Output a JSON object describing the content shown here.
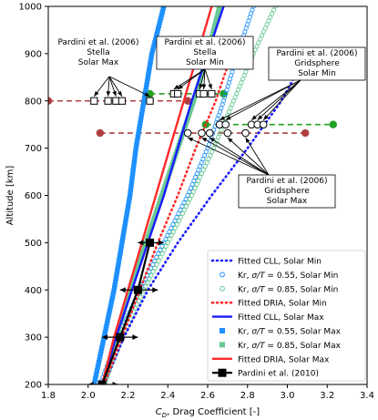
{
  "chart_data": {
    "type": "line",
    "xlabel": "C_D, Drag Coefficient [-]",
    "ylabel": "Altitude [km]",
    "xlim": [
      1.8,
      3.4
    ],
    "ylim": [
      200,
      1000
    ],
    "xticks": [
      "1.8",
      "2.0",
      "2.2",
      "2.4",
      "2.6",
      "2.8",
      "3.0",
      "3.2",
      "3.4"
    ],
    "yticks": [
      "200",
      "300",
      "400",
      "500",
      "600",
      "700",
      "800",
      "900",
      "1000"
    ],
    "grid": false,
    "legend_position": "lower-right",
    "colors": {
      "cll": "#1a1aff",
      "dria": "#ff2a2a",
      "kr055": "#1e90ff",
      "kr085": "#66c992",
      "pardini2006_green": "#22a022",
      "pardini2006_red": "#b04040",
      "pardini2010": "#000000"
    },
    "legend": [
      {
        "label": "Fitted CLL, Solar Min",
        "symbol": "dotted",
        "color": "#1a1aff"
      },
      {
        "label": "Kr, σ/T = 0.55, Solar Min",
        "symbol": "open-circle",
        "color": "#1e90ff"
      },
      {
        "label": "Kr, σ/T = 0.85, Solar Min",
        "symbol": "open-circle",
        "color": "#66c992"
      },
      {
        "label": "Fitted DRIA, Solar Min",
        "symbol": "dotted",
        "color": "#ff2a2a"
      },
      {
        "label": "Fitted CLL, Solar Max",
        "symbol": "solid",
        "color": "#1a1aff"
      },
      {
        "label": "Kr, σ/T = 0.55, Solar Max",
        "symbol": "filled-square",
        "color": "#1e90ff"
      },
      {
        "label": "Kr, σ/T = 0.85, Solar Max",
        "symbol": "filled-square",
        "color": "#66c992"
      },
      {
        "label": "Fitted DRIA, Solar Max",
        "symbol": "solid",
        "color": "#ff2a2a"
      },
      {
        "label": "Pardini et al. (2010)",
        "symbol": "line-square",
        "color": "#000000"
      }
    ],
    "series": [
      {
        "name": "Fitted CLL, Solar Min",
        "style": "dotted",
        "color": "#1a1aff",
        "x": [
          2.08,
          2.18,
          2.3,
          2.45,
          2.62,
          2.8,
          2.97,
          3.1
        ],
        "y": [
          200,
          300,
          400,
          500,
          600,
          700,
          800,
          900
        ]
      },
      {
        "name": "Kr, σ/T = 0.55, Solar Min",
        "style": "open-circle",
        "color": "#1e90ff",
        "x": [
          2.06,
          2.15,
          2.26,
          2.38,
          2.5,
          2.6,
          2.68,
          2.75,
          2.83
        ],
        "y": [
          200,
          300,
          400,
          500,
          600,
          700,
          800,
          900,
          1000
        ]
      },
      {
        "name": "Kr, σ/T = 0.85, Solar Min",
        "style": "open-circle",
        "color": "#66c992",
        "x": [
          2.08,
          2.17,
          2.28,
          2.4,
          2.52,
          2.63,
          2.73,
          2.83,
          2.94
        ],
        "y": [
          200,
          300,
          400,
          500,
          600,
          700,
          800,
          900,
          1000
        ]
      },
      {
        "name": "Fitted DRIA, Solar Min",
        "style": "dotted",
        "color": "#ff2a2a",
        "x": [
          2.08,
          2.17,
          2.26,
          2.35,
          2.45,
          2.54,
          2.64,
          2.72
        ],
        "y": [
          200,
          300,
          400,
          500,
          600,
          700,
          800,
          900
        ]
      },
      {
        "name": "Fitted CLL, Solar Max",
        "style": "solid",
        "color": "#1a1aff",
        "x": [
          2.07,
          2.14,
          2.22,
          2.3,
          2.38,
          2.45,
          2.52,
          2.6,
          2.68
        ],
        "y": [
          200,
          300,
          400,
          500,
          600,
          700,
          800,
          900,
          1000
        ]
      },
      {
        "name": "Kr, σ/T = 0.55, Solar Max",
        "style": "filled-square",
        "color": "#1e90ff",
        "x": [
          2.03,
          2.08,
          2.13,
          2.17,
          2.21,
          2.24,
          2.28,
          2.32,
          2.38
        ],
        "y": [
          200,
          300,
          400,
          500,
          600,
          700,
          800,
          900,
          1000
        ]
      },
      {
        "name": "Kr, σ/T = 0.85, Solar Max",
        "style": "filled-square",
        "color": "#66c992",
        "x": [
          2.08,
          2.14,
          2.21,
          2.29,
          2.37,
          2.45,
          2.53,
          2.6,
          2.66
        ],
        "y": [
          200,
          300,
          400,
          500,
          600,
          700,
          800,
          900,
          1000
        ]
      },
      {
        "name": "Fitted DRIA, Solar Max",
        "style": "solid",
        "color": "#ff2a2a",
        "x": [
          2.07,
          2.13,
          2.2,
          2.27,
          2.34,
          2.41,
          2.48,
          2.55,
          2.62
        ],
        "y": [
          200,
          300,
          400,
          500,
          600,
          700,
          800,
          900,
          1000
        ]
      }
    ],
    "pardini_2010": {
      "name": "Pardini et al. (2010)",
      "x": [
        2.07,
        2.16,
        2.25,
        2.31
      ],
      "y": [
        200,
        300,
        400,
        500
      ],
      "xerr_low": [
        2.0,
        2.07,
        2.16,
        2.25
      ],
      "xerr_high": [
        2.15,
        2.25,
        2.35,
        2.38
      ]
    },
    "stella_dash_lines": [
      {
        "y": 815,
        "x": [
          2.31,
          2.68
        ],
        "color": "#22a022"
      },
      {
        "y": 800,
        "x": [
          1.8,
          2.5
        ],
        "color": "#b04040"
      }
    ],
    "gridsphere_dash_lines": [
      {
        "y": 750,
        "x": [
          2.59,
          3.23
        ],
        "color": "#22a022"
      },
      {
        "y": 732,
        "x": [
          2.06,
          3.09
        ],
        "color": "#b04040"
      }
    ],
    "stella_min_squares": {
      "x": [
        2.43,
        2.45,
        2.56,
        2.58,
        2.62
      ],
      "y": [
        815,
        815,
        815,
        815,
        815
      ]
    },
    "stella_max_squares": {
      "x": [
        2.03,
        2.1,
        2.14,
        2.17,
        2.31
      ],
      "y": [
        800,
        800,
        800,
        800,
        800
      ]
    },
    "gridsphere_min_circles": {
      "x": [
        2.66,
        2.69,
        2.82,
        2.85,
        2.88
      ],
      "y": [
        750,
        750,
        750,
        750,
        750
      ]
    },
    "gridsphere_max_circles": {
      "x": [
        2.5,
        2.57,
        2.61,
        2.7,
        2.79
      ],
      "y": [
        732,
        732,
        732,
        732,
        732
      ]
    },
    "annotations": [
      {
        "lines": [
          "Pardini et al. (2006)",
          "Stella",
          "Solar Max"
        ],
        "box": false
      },
      {
        "lines": [
          "Pardini et al. (2006)",
          "Stella",
          "Solar Min"
        ],
        "box": true
      },
      {
        "lines": [
          "Pardini et al. (2006)",
          "Gridsphere",
          "Solar Min"
        ],
        "box": true
      },
      {
        "lines": [
          "Pardini et al. (2006)",
          "Gridsphere",
          "Solar Max"
        ],
        "box": true
      }
    ]
  }
}
